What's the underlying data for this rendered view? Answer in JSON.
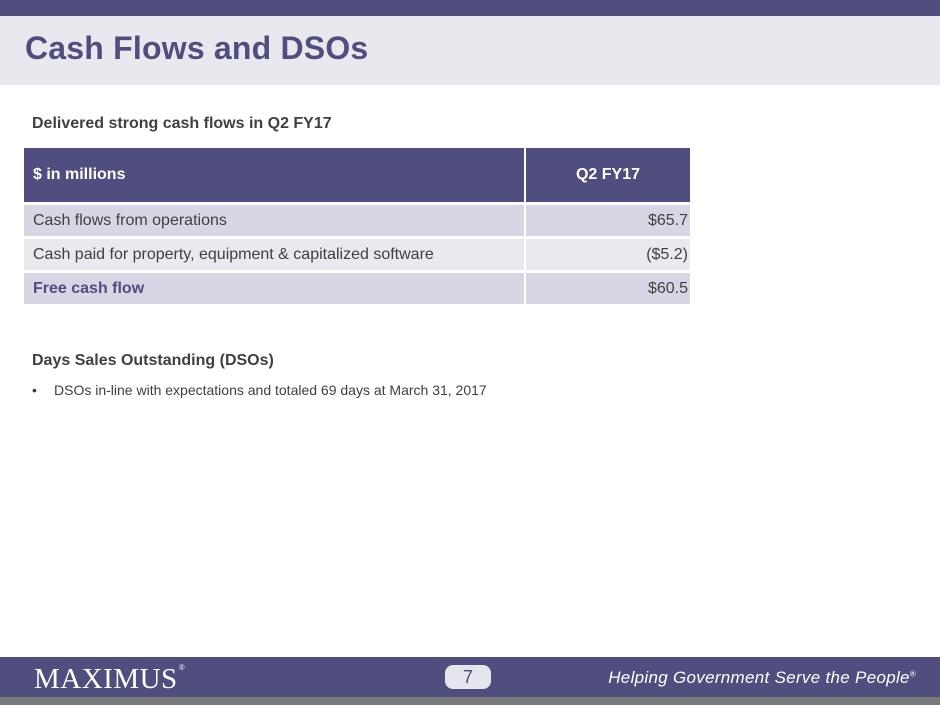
{
  "header": {
    "title": "Cash Flows and DSOs"
  },
  "section_cash": {
    "subtitle": "Delivered strong cash flows in Q2 FY17",
    "table": {
      "headers": [
        "$ in millions",
        "Q2 FY17"
      ],
      "rows": [
        {
          "label": "Cash flows from operations",
          "value": "$65.7"
        },
        {
          "label": "Cash paid for property, equipment & capitalized software",
          "value": "($5.2)"
        },
        {
          "label": "Free cash flow",
          "value": "$60.5"
        }
      ]
    }
  },
  "section_dso": {
    "heading": "Days Sales Outstanding (DSOs)",
    "bullets": [
      "DSOs in-line with expectations and totaled 69 days at March 31, 2017"
    ]
  },
  "footer": {
    "logo": "MAXIMUS",
    "logo_mark": "®",
    "page_number": "7",
    "tagline": "Helping Government Serve the People",
    "tagline_mark": "®"
  },
  "colors": {
    "brand": "#504d7f",
    "row_dark": "#d7d6e4",
    "row_light": "#e9e9f0"
  }
}
